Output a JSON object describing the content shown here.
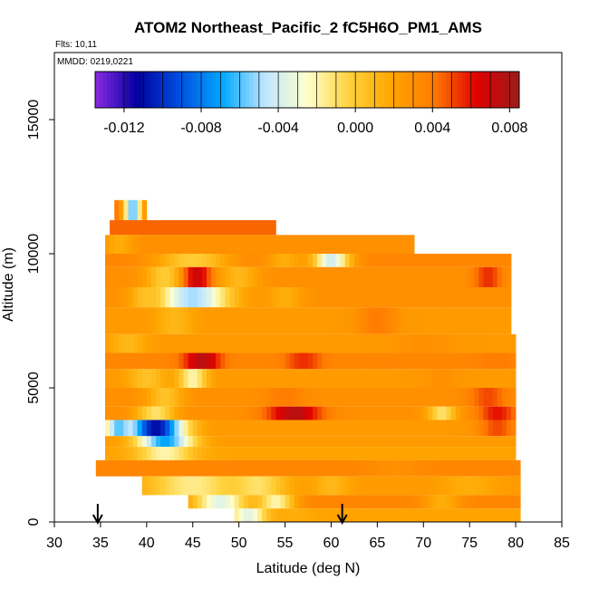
{
  "chart_data": {
    "type": "heatmap",
    "title": "ATOM2 Northeast_Pacific_2 fC5H6O_PM1_AMS",
    "flights_note": "Flts: 10,11",
    "date_note": "MMDD: 0219,0221",
    "xlabel": "Latitude (deg N)",
    "ylabel": "Altitude (m)",
    "xlim": [
      30,
      85
    ],
    "ylim": [
      0,
      17500
    ],
    "xticks": [
      "30",
      "35",
      "40",
      "45",
      "50",
      "55",
      "60",
      "65",
      "70",
      "75",
      "80",
      "85"
    ],
    "yticks": [
      "0",
      "5000",
      "10000",
      "15000"
    ],
    "colorbar": {
      "range": [
        -0.0135,
        0.0085
      ],
      "ticks": [
        "-0.012",
        "-0.008",
        "-0.004",
        "0.000",
        "0.004",
        "0.008"
      ],
      "tick_values": [
        -0.012,
        -0.008,
        -0.004,
        0.0,
        0.004,
        0.008
      ],
      "colors": [
        "#8a2be2",
        "#0000a0",
        "#0050e0",
        "#00a8ff",
        "#bfe6ff",
        "#ffffcc",
        "#ffd23c",
        "#ffa500",
        "#ff7b00",
        "#e00000",
        "#9b1c1c"
      ]
    },
    "arrows_at_latitude": [
      34.7,
      61.2
    ],
    "bands": [
      {
        "alt": [
          11250,
          12000
        ],
        "lat": [
          36.5,
          40
        ],
        "base": 0.0045,
        "spots": [
          {
            "lat": 38.5,
            "v": -0.006,
            "w": 1
          }
        ]
      },
      {
        "alt": [
          10700,
          11250
        ],
        "lat": [
          36,
          54
        ],
        "base": 0.0045,
        "spots": []
      },
      {
        "alt": [
          10000,
          10700
        ],
        "lat": [
          35.5,
          69
        ],
        "base": 0.003,
        "spots": [
          {
            "lat": 37,
            "v": 0.0015,
            "w": 1.5
          }
        ]
      },
      {
        "alt": [
          9500,
          10000
        ],
        "lat": [
          35.5,
          79.5
        ],
        "base": 0.0035,
        "spots": [
          {
            "lat": 45,
            "v": 0.0,
            "w": 4
          },
          {
            "lat": 60,
            "v": -0.004,
            "w": 2
          },
          {
            "lat": 55,
            "v": 0.0015,
            "w": 2
          }
        ]
      },
      {
        "alt": [
          8750,
          9500
        ],
        "lat": [
          35.5,
          79.5
        ],
        "base": 0.003,
        "spots": [
          {
            "lat": 42,
            "v": 0.0,
            "w": 2
          },
          {
            "lat": 45.5,
            "v": 0.007,
            "w": 1.5
          },
          {
            "lat": 50,
            "v": 0.001,
            "w": 2
          },
          {
            "lat": 77,
            "v": 0.0055,
            "w": 1.5
          }
        ]
      },
      {
        "alt": [
          8000,
          8750
        ],
        "lat": [
          35.5,
          79.5
        ],
        "base": 0.003,
        "spots": [
          {
            "lat": 45,
            "v": -0.005,
            "w": 4
          },
          {
            "lat": 40,
            "v": 0.0005,
            "w": 1.5
          },
          {
            "lat": 55,
            "v": 0.0015,
            "w": 2
          }
        ]
      },
      {
        "alt": [
          7000,
          8000
        ],
        "lat": [
          35.5,
          79.5
        ],
        "base": 0.0025,
        "spots": [
          {
            "lat": 43,
            "v": 0.001,
            "w": 2
          },
          {
            "lat": 65,
            "v": 0.004,
            "w": 2
          }
        ]
      },
      {
        "alt": [
          6300,
          7000
        ],
        "lat": [
          35.5,
          80
        ],
        "base": 0.0025,
        "spots": [
          {
            "lat": 38,
            "v": 0.001,
            "w": 2
          },
          {
            "lat": 70,
            "v": 0.003,
            "w": 3
          }
        ]
      },
      {
        "alt": [
          5700,
          6300
        ],
        "lat": [
          35.5,
          80
        ],
        "base": 0.0035,
        "spots": [
          {
            "lat": 46,
            "v": 0.0075,
            "w": 2
          },
          {
            "lat": 57,
            "v": 0.0055,
            "w": 2
          },
          {
            "lat": 78,
            "v": 0.004,
            "w": 2
          }
        ]
      },
      {
        "alt": [
          5000,
          5700
        ],
        "lat": [
          35.5,
          80
        ],
        "base": 0.0025,
        "spots": [
          {
            "lat": 40,
            "v": 0.0005,
            "w": 2
          },
          {
            "lat": 45,
            "v": -0.002,
            "w": 1.5
          },
          {
            "lat": 72,
            "v": 0.003,
            "w": 2
          }
        ]
      },
      {
        "alt": [
          4300,
          5000
        ],
        "lat": [
          35.5,
          80
        ],
        "base": 0.003,
        "spots": [
          {
            "lat": 42,
            "v": 0.0005,
            "w": 2
          },
          {
            "lat": 55,
            "v": 0.004,
            "w": 2
          },
          {
            "lat": 77,
            "v": 0.005,
            "w": 2
          }
        ]
      },
      {
        "alt": [
          3800,
          4300
        ],
        "lat": [
          35.5,
          80
        ],
        "base": 0.003,
        "spots": [
          {
            "lat": 41,
            "v": -0.001,
            "w": 2
          },
          {
            "lat": 56,
            "v": 0.0075,
            "w": 3
          },
          {
            "lat": 72,
            "v": -0.001,
            "w": 1.5
          },
          {
            "lat": 78,
            "v": 0.006,
            "w": 2
          }
        ]
      },
      {
        "alt": [
          3200,
          3800
        ],
        "lat": [
          35.5,
          80
        ],
        "base": 0.0025,
        "spots": [
          {
            "lat": 41,
            "v": -0.011,
            "w": 3
          },
          {
            "lat": 37,
            "v": -0.006,
            "w": 1.5
          },
          {
            "lat": 78,
            "v": 0.005,
            "w": 2
          }
        ]
      },
      {
        "alt": [
          2800,
          3200
        ],
        "lat": [
          35.5,
          80
        ],
        "base": 0.0025,
        "spots": [
          {
            "lat": 42,
            "v": -0.007,
            "w": 3
          }
        ]
      },
      {
        "alt": [
          2300,
          2800
        ],
        "lat": [
          35.5,
          80
        ],
        "base": 0.002,
        "spots": [
          {
            "lat": 42,
            "v": -0.002,
            "w": 3
          },
          {
            "lat": 60,
            "v": 0.002,
            "w": 2
          }
        ]
      },
      {
        "alt": [
          1700,
          2300
        ],
        "lat": [
          34.5,
          80.5
        ],
        "base": 0.0035,
        "spots": [
          {
            "lat": 67,
            "v": 0.003,
            "w": 3
          }
        ]
      },
      {
        "alt": [
          1000,
          1700
        ],
        "lat": [
          39.5,
          80.5
        ],
        "base": 0.0025,
        "spots": [
          {
            "lat": 45,
            "v": -0.0015,
            "w": 5
          },
          {
            "lat": 52,
            "v": -0.001,
            "w": 3
          },
          {
            "lat": 60,
            "v": 0.001,
            "w": 2
          },
          {
            "lat": 75,
            "v": 0.0015,
            "w": 3
          }
        ]
      },
      {
        "alt": [
          500,
          1000
        ],
        "lat": [
          44.5,
          80.5
        ],
        "base": 0.0035,
        "spots": [
          {
            "lat": 48,
            "v": -0.0035,
            "w": 3
          },
          {
            "lat": 54,
            "v": -0.002,
            "w": 2
          },
          {
            "lat": 72,
            "v": 0.0015,
            "w": 2
          }
        ]
      },
      {
        "alt": [
          0,
          500
        ],
        "lat": [
          49.5,
          80.5
        ],
        "base": 0.002,
        "spots": [
          {
            "lat": 51,
            "v": -0.0035,
            "w": 2
          },
          {
            "lat": 56,
            "v": 0.0015,
            "w": 2
          }
        ]
      }
    ]
  }
}
